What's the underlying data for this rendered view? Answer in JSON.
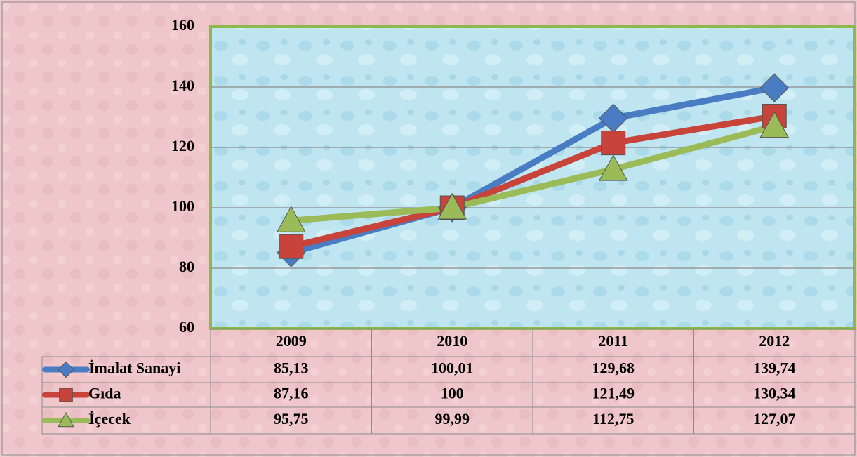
{
  "chart_data": {
    "type": "line",
    "categories": [
      "2009",
      "2010",
      "2011",
      "2012"
    ],
    "series": [
      {
        "name": "İmalat Sanayi",
        "color": "#4a7cc4",
        "marker": "diamond",
        "values": [
          85.13,
          100.01,
          129.68,
          139.74
        ],
        "value_labels": [
          "85,13",
          "100,01",
          "129,68",
          "139,74"
        ]
      },
      {
        "name": "Gıda",
        "color": "#c8433a",
        "marker": "square",
        "values": [
          87.16,
          100,
          121.49,
          130.34
        ],
        "value_labels": [
          "87,16",
          "100",
          "121,49",
          "130,34"
        ]
      },
      {
        "name": "İçecek",
        "color": "#9bbb59",
        "marker": "triangle",
        "values": [
          95.75,
          99.99,
          112.75,
          127.07
        ],
        "value_labels": [
          "95,75",
          "99,99",
          "112,75",
          "127,07"
        ]
      }
    ],
    "ylim": [
      60,
      160
    ],
    "yticks": [
      60,
      80,
      100,
      120,
      140,
      160
    ],
    "grid": true,
    "data_table": true
  }
}
